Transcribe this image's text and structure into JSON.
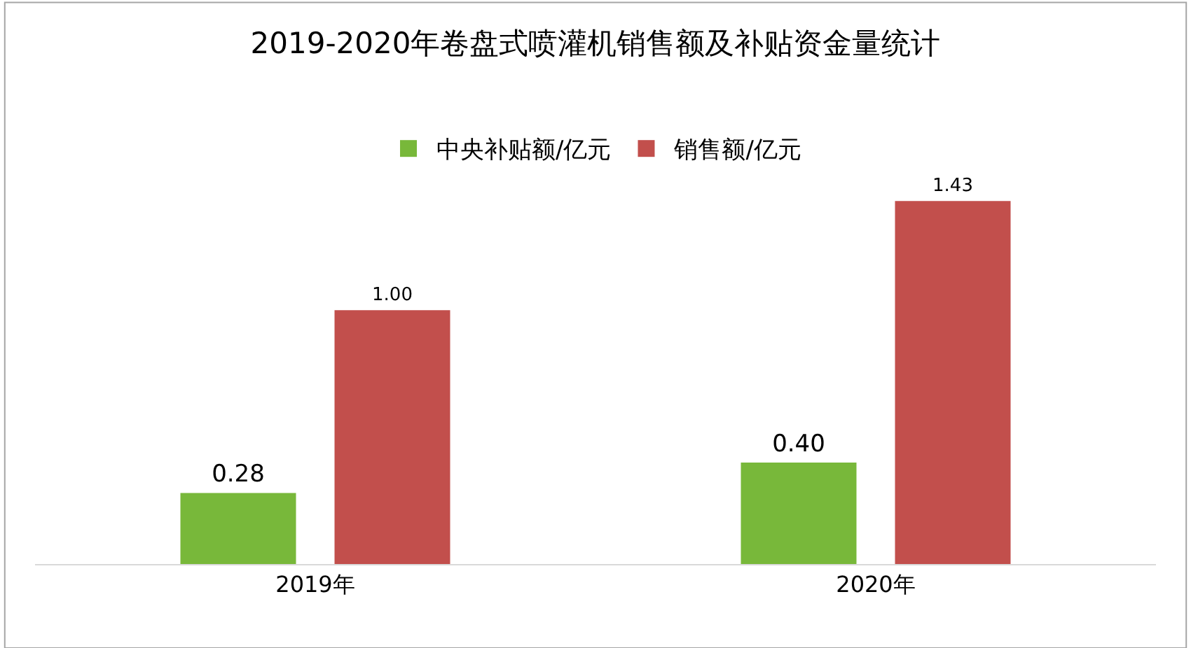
{
  "chart_data": {
    "type": "bar",
    "title": "2019-2020年卷盘式喷灌机销售额及补贴资金量统计",
    "categories": [
      "2019年",
      "2020年"
    ],
    "series": [
      {
        "name": "中央补贴额/亿元",
        "color": "#78b83a",
        "values": [
          0.28,
          0.4
        ],
        "value_labels": [
          "0.28",
          "0.40"
        ]
      },
      {
        "name": "销售额/亿元",
        "color": "#c24f4c",
        "values": [
          1.0,
          1.43
        ],
        "value_labels": [
          "1.00",
          "1.43"
        ]
      }
    ],
    "legend": "top"
  }
}
